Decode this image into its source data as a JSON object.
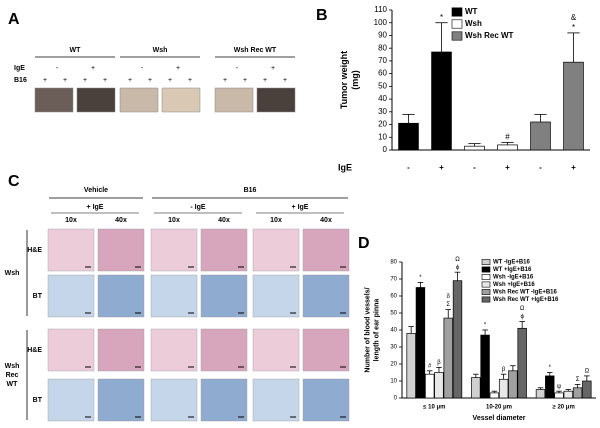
{
  "panel_letters": [
    "A",
    "B",
    "C",
    "D"
  ],
  "panel_a": {
    "row_labels": [
      "IgE",
      "B16"
    ],
    "groups": [
      {
        "label": "WT",
        "ige": [
          "-",
          "+"
        ],
        "b16": [
          "+",
          "+",
          "+",
          "+"
        ]
      },
      {
        "label": "Wsh",
        "ige": [
          "-",
          "+"
        ],
        "b16": [
          "+",
          "+",
          "+",
          "+"
        ]
      },
      {
        "label": "Wsh Rec WT",
        "ige": [
          "-",
          "+"
        ],
        "b16": [
          "+",
          "+",
          "+",
          "+"
        ]
      }
    ]
  },
  "panel_c": {
    "conditions": [
      {
        "label": "Vehicle",
        "subs": [
          {
            "label": "+ IgE",
            "mags": [
              "10x",
              "40x"
            ]
          }
        ]
      },
      {
        "label": "B16",
        "subs": [
          {
            "label": "- IgE",
            "mags": [
              "10x",
              "40x"
            ]
          },
          {
            "label": "+ IgE",
            "mags": [
              "10x",
              "40x"
            ]
          }
        ]
      }
    ],
    "groups": [
      {
        "label_lines": [
          "Wsh"
        ],
        "rows": [
          "H&E",
          "BT"
        ]
      },
      {
        "label_lines": [
          "Wsh",
          "Rec",
          "WT"
        ],
        "rows": [
          "H&E",
          "BT"
        ]
      }
    ]
  },
  "chart_data": [
    {
      "type": "bar",
      "y_label": [
        "Tumor weight",
        "(mg)"
      ],
      "x_label": "IgE",
      "categories": [
        "-",
        "+",
        "-",
        "+",
        "-",
        "+"
      ],
      "ylim": [
        0,
        110
      ],
      "yticks": [
        0,
        10,
        20,
        30,
        40,
        50,
        60,
        70,
        80,
        90,
        100,
        110
      ],
      "series": [
        {
          "name": "WT",
          "color": "#000000",
          "values": [
            21,
            77,
            null,
            null,
            null,
            null
          ],
          "errors": [
            7,
            23,
            null,
            null,
            null,
            null
          ],
          "annotations": [
            null,
            [
              "*"
            ],
            null,
            null,
            null,
            null
          ]
        },
        {
          "name": "Wsh",
          "color": "#ffffff",
          "values": [
            null,
            null,
            3,
            4,
            null,
            null
          ],
          "errors": [
            null,
            null,
            2,
            2,
            null,
            null
          ],
          "annotations": [
            null,
            null,
            null,
            [
              "#"
            ],
            null,
            null
          ]
        },
        {
          "name": "Wsh Rec WT",
          "color": "#808080",
          "values": [
            null,
            null,
            null,
            null,
            22,
            69
          ],
          "errors": [
            null,
            null,
            null,
            null,
            6,
            23
          ],
          "annotations": [
            null,
            null,
            null,
            null,
            null,
            [
              "*",
              "&"
            ]
          ]
        }
      ]
    },
    {
      "type": "bar",
      "y_label": [
        "Number of blood vessels/",
        "length of ear pinna"
      ],
      "x_label": "Vessel diameter",
      "categories": [
        "≤ 10 μm",
        "10-20 μm",
        "≥ 20 μm"
      ],
      "ylim": [
        0,
        80
      ],
      "yticks": [
        0,
        10,
        20,
        30,
        40,
        50,
        60,
        70,
        80
      ],
      "series": [
        {
          "name": "WT -IgE+B16",
          "color": "#d0d0d0",
          "values": [
            38,
            12,
            5
          ],
          "errors": [
            4,
            2,
            1
          ],
          "annotations": [
            null,
            null,
            null
          ]
        },
        {
          "name": "WT +IgE+B16",
          "color": "#000000",
          "values": [
            65,
            37,
            13
          ],
          "errors": [
            3,
            3,
            2
          ],
          "annotations": [
            [
              "*"
            ],
            [
              "*"
            ],
            [
              "*"
            ]
          ]
        },
        {
          "name": "Wsh -IgE+B16",
          "color": "#ffffff",
          "values": [
            14,
            3,
            3
          ],
          "errors": [
            2,
            1,
            1
          ],
          "annotations": [
            [
              "#"
            ],
            null,
            [
              "ψ"
            ]
          ]
        },
        {
          "name": "Wsh +IgE+B16",
          "color": "#e8e8e8",
          "values": [
            15,
            11,
            4
          ],
          "errors": [
            3,
            3,
            1
          ],
          "annotations": [
            [
              "β"
            ],
            [
              "β"
            ],
            null
          ]
        },
        {
          "name": "Wsh Rec WT -IgE+B16",
          "color": "#a0a0a0",
          "values": [
            47,
            16,
            6
          ],
          "errors": [
            5,
            3,
            2
          ],
          "annotations": [
            [
              "Σ",
              "δ"
            ],
            null,
            [
              "Σ"
            ]
          ]
        },
        {
          "name": "Wsh Rec WT +IgE+B16",
          "color": "#666666",
          "values": [
            69,
            41,
            10
          ],
          "errors": [
            5,
            4,
            3
          ],
          "annotations": [
            [
              "ϕ",
              "Ω"
            ],
            [
              "ϕ",
              "Ω"
            ],
            [
              "Ω"
            ]
          ]
        }
      ]
    }
  ]
}
